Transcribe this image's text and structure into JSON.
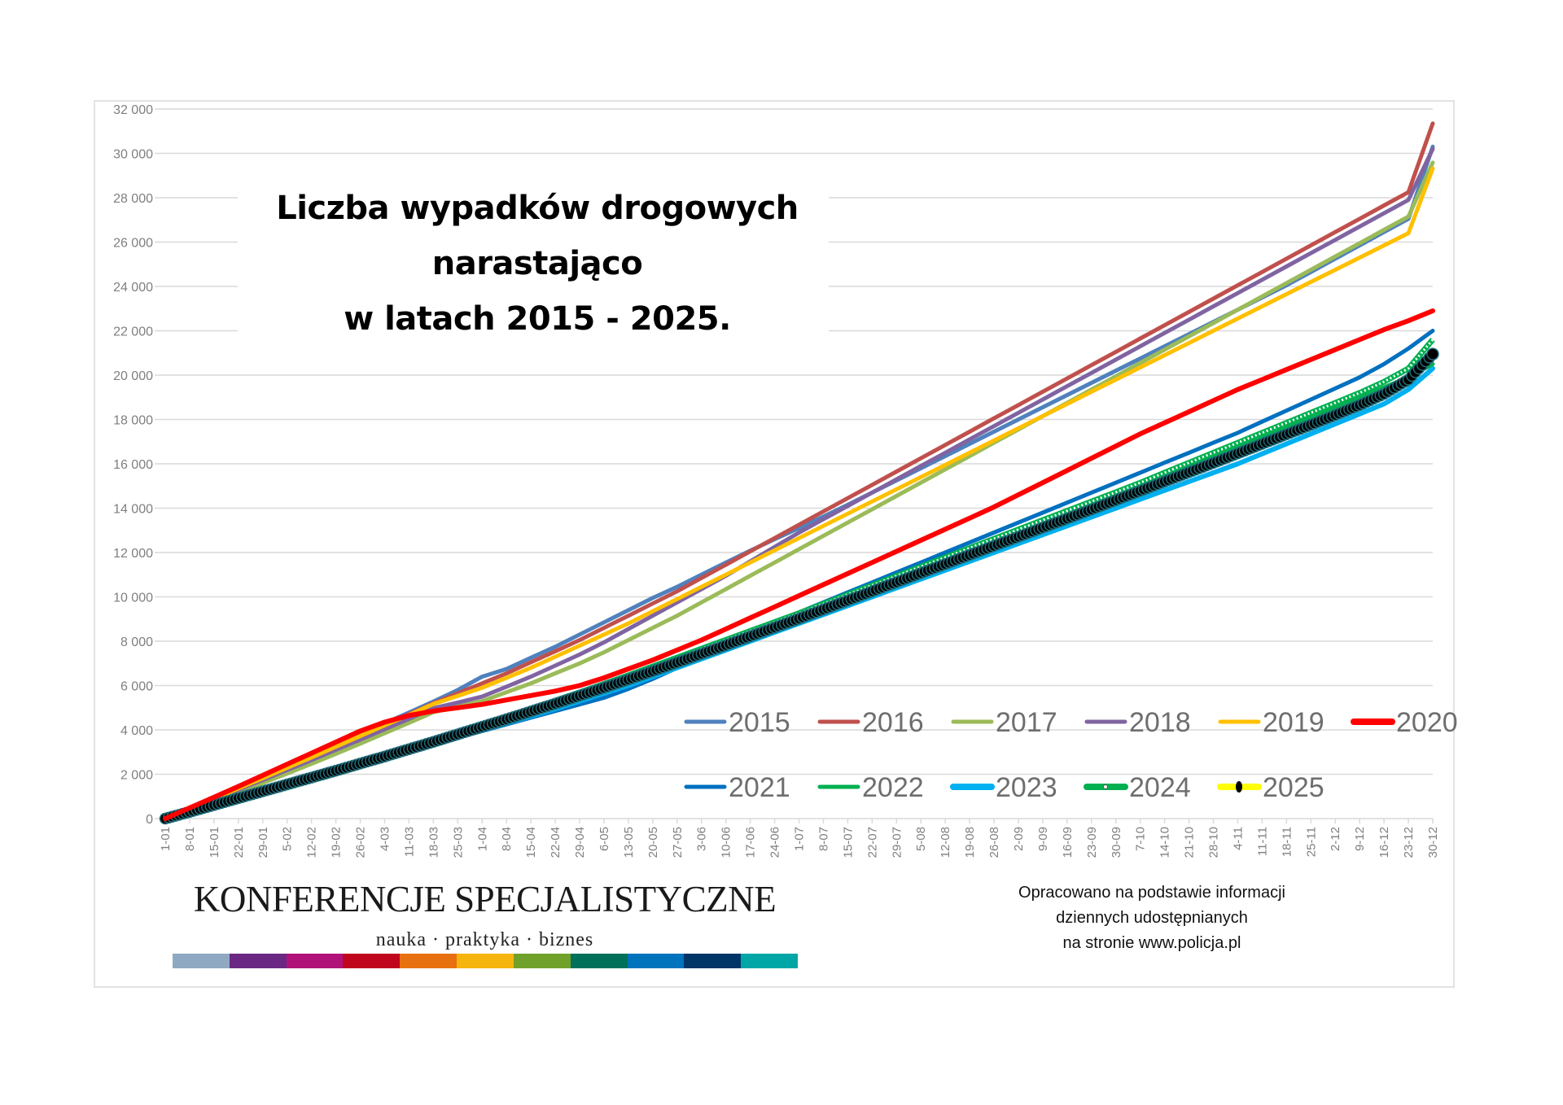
{
  "chart_data": {
    "type": "line",
    "title": "Liczba wypadków drogowych narastająco w latach 2015 - 2025.",
    "title_lines": [
      "Liczba wypadków drogowych",
      "narastająco",
      "w latach 2015 - 2025."
    ],
    "xlabel": "",
    "ylabel": "",
    "ylim": [
      0,
      32000
    ],
    "y_ticks": [
      0,
      2000,
      4000,
      6000,
      8000,
      10000,
      12000,
      14000,
      16000,
      18000,
      20000,
      22000,
      24000,
      26000,
      28000,
      30000,
      32000
    ],
    "y_tick_labels": [
      "0",
      "2 000",
      "4 000",
      "6 000",
      "8 000",
      "10 000",
      "12 000",
      "14 000",
      "16 000",
      "18 000",
      "20 000",
      "22 000",
      "24 000",
      "26 000",
      "28 000",
      "30 000",
      "32 000"
    ],
    "grid": true,
    "legend_position": "bottom-right",
    "x": [
      "1-01",
      "8-01",
      "15-01",
      "22-01",
      "29-01",
      "5-02",
      "12-02",
      "19-02",
      "26-02",
      "4-03",
      "11-03",
      "18-03",
      "25-03",
      "1-04",
      "8-04",
      "15-04",
      "22-04",
      "29-04",
      "6-05",
      "13-05",
      "20-05",
      "27-05",
      "3-06",
      "10-06",
      "17-06",
      "24-06",
      "1-07",
      "8-07",
      "15-07",
      "22-07",
      "29-07",
      "5-08",
      "12-08",
      "19-08",
      "26-08",
      "2-09",
      "9-09",
      "16-09",
      "23-09",
      "30-09",
      "7-10",
      "14-10",
      "21-10",
      "28-10",
      "4-11",
      "11-11",
      "18-11",
      "25-11",
      "2-12",
      "9-12",
      "16-12",
      "23-12",
      "30-12"
    ],
    "series": [
      {
        "name": "2015",
        "color": "#4f81bd",
        "style": "line",
        "values": [
          0,
          480,
          950,
          1420,
          1900,
          2380,
          2850,
          3330,
          3810,
          4290,
          4780,
          5280,
          5800,
          6400,
          6750,
          7250,
          7750,
          8300,
          8850,
          9400,
          9950,
          10450,
          11000,
          11550,
          12080,
          12600,
          13100,
          13620,
          14150,
          14700,
          15250,
          15800,
          16350,
          16900,
          17450,
          18000,
          18550,
          19100,
          19650,
          20200,
          20750,
          21300,
          21850,
          22400,
          22950,
          23500,
          24050,
          24650,
          25250,
          25850,
          26450,
          27050,
          30300
        ]
      },
      {
        "name": "2016",
        "color": "#c0504d",
        "style": "line",
        "values": [
          0,
          470,
          930,
          1390,
          1860,
          2330,
          2800,
          3270,
          3740,
          4220,
          4710,
          5200,
          5650,
          6100,
          6550,
          7050,
          7550,
          8050,
          8600,
          9150,
          9700,
          10250,
          10850,
          11450,
          12050,
          12650,
          13250,
          13850,
          14450,
          15050,
          15650,
          16250,
          16850,
          17450,
          18050,
          18650,
          19250,
          19850,
          20450,
          21050,
          21650,
          22250,
          22850,
          23450,
          24050,
          24650,
          25250,
          25850,
          26450,
          27050,
          27650,
          28250,
          31350
        ]
      },
      {
        "name": "2017",
        "color": "#9bbb59",
        "style": "line",
        "values": [
          0,
          400,
          800,
          1200,
          1610,
          2030,
          2470,
          2920,
          3380,
          3850,
          4320,
          4800,
          5050,
          5300,
          5700,
          6100,
          6550,
          7000,
          7500,
          8050,
          8600,
          9150,
          9750,
          10350,
          10950,
          11550,
          12150,
          12750,
          13350,
          13950,
          14550,
          15150,
          15750,
          16350,
          16950,
          17550,
          18150,
          18750,
          19350,
          19950,
          20550,
          21150,
          21750,
          22350,
          22950,
          23550,
          24150,
          24750,
          25350,
          25950,
          26550,
          27150,
          29580
        ]
      },
      {
        "name": "2018",
        "color": "#8064a2",
        "style": "line",
        "values": [
          0,
          430,
          860,
          1300,
          1740,
          2190,
          2640,
          3100,
          3560,
          4030,
          4500,
          4980,
          5230,
          5500,
          5950,
          6400,
          6900,
          7400,
          7950,
          8550,
          9150,
          9750,
          10350,
          10950,
          11600,
          12250,
          12900,
          13500,
          14100,
          14700,
          15300,
          15900,
          16500,
          17100,
          17700,
          18300,
          18900,
          19500,
          20100,
          20700,
          21300,
          21900,
          22500,
          23100,
          23700,
          24300,
          24900,
          25500,
          26100,
          26700,
          27300,
          27900,
          30200
        ]
      },
      {
        "name": "2019",
        "color": "#ffc000",
        "style": "line",
        "values": [
          0,
          450,
          900,
          1360,
          1820,
          2290,
          2760,
          3240,
          3720,
          4200,
          4680,
          5170,
          5530,
          5900,
          6350,
          6800,
          7300,
          7800,
          8300,
          8800,
          9350,
          9900,
          10450,
          11000,
          11550,
          12100,
          12650,
          13200,
          13750,
          14300,
          14850,
          15400,
          15950,
          16500,
          17050,
          17600,
          18150,
          18700,
          19250,
          19800,
          20350,
          20900,
          21450,
          22000,
          22550,
          23100,
          23650,
          24200,
          24750,
          25300,
          25850,
          26400,
          29320
        ]
      },
      {
        "name": "2020",
        "color": "#ff0000",
        "style": "line-thick",
        "values": [
          0,
          480,
          960,
          1450,
          1950,
          2450,
          2950,
          3450,
          3950,
          4350,
          4650,
          4850,
          5000,
          5150,
          5350,
          5550,
          5750,
          6000,
          6350,
          6750,
          7150,
          7600,
          8050,
          8550,
          9050,
          9550,
          10050,
          10550,
          11050,
          11550,
          12050,
          12550,
          13050,
          13550,
          14050,
          14600,
          15150,
          15700,
          16250,
          16800,
          17350,
          17850,
          18350,
          18850,
          19350,
          19800,
          20250,
          20700,
          21150,
          21600,
          22050,
          22450,
          22900
        ]
      },
      {
        "name": "2021",
        "color": "#0070c0",
        "style": "line",
        "values": [
          0,
          300,
          600,
          900,
          1200,
          1500,
          1800,
          2100,
          2400,
          2700,
          3050,
          3350,
          3650,
          3950,
          4250,
          4550,
          4850,
          5150,
          5450,
          5850,
          6300,
          6800,
          7300,
          7800,
          8300,
          8800,
          9300,
          9750,
          10200,
          10650,
          11100,
          11550,
          12000,
          12450,
          12900,
          13350,
          13800,
          14250,
          14700,
          15150,
          15600,
          16050,
          16500,
          16950,
          17400,
          17900,
          18400,
          18900,
          19400,
          19900,
          20500,
          21200,
          22000
        ]
      },
      {
        "name": "2022",
        "color": "#00b050",
        "style": "line",
        "values": [
          0,
          310,
          630,
          950,
          1280,
          1600,
          1920,
          2250,
          2570,
          2900,
          3240,
          3580,
          3920,
          4270,
          4620,
          4980,
          5350,
          5730,
          6110,
          6500,
          6900,
          7300,
          7700,
          8100,
          8500,
          8900,
          9300,
          9700,
          10100,
          10500,
          10900,
          11300,
          11700,
          12100,
          12500,
          12900,
          13300,
          13700,
          14100,
          14500,
          14950,
          15400,
          15850,
          16300,
          16750,
          17200,
          17650,
          18100,
          18550,
          19000,
          19450,
          19900,
          20500
        ]
      },
      {
        "name": "2023",
        "color": "#00b0f0",
        "style": "line-thick",
        "values": [
          0,
          300,
          600,
          900,
          1200,
          1500,
          1800,
          2100,
          2400,
          2700,
          3020,
          3340,
          3660,
          3980,
          4300,
          4620,
          4950,
          5300,
          5650,
          6000,
          6400,
          6800,
          7200,
          7600,
          8000,
          8400,
          8800,
          9200,
          9600,
          10000,
          10400,
          10800,
          11200,
          11600,
          12000,
          12400,
          12800,
          13200,
          13600,
          14000,
          14400,
          14800,
          15200,
          15600,
          16000,
          16450,
          16900,
          17350,
          17800,
          18250,
          18700,
          19350,
          20300
        ]
      },
      {
        "name": "2024",
        "color": "#00b050",
        "style": "line-marker-white",
        "values": [
          0,
          310,
          630,
          950,
          1270,
          1590,
          1910,
          2230,
          2560,
          2890,
          3220,
          3560,
          3900,
          4250,
          4600,
          4960,
          5320,
          5690,
          6070,
          6460,
          6860,
          7260,
          7660,
          8060,
          8460,
          8860,
          9260,
          9680,
          10100,
          10520,
          10940,
          11360,
          11780,
          12200,
          12620,
          13040,
          13460,
          13880,
          14300,
          14720,
          15150,
          15600,
          16050,
          16500,
          16950,
          17400,
          17850,
          18300,
          18750,
          19200,
          19700,
          20300,
          21600
        ]
      },
      {
        "name": "2025",
        "color": "#ffff00",
        "marker_color": "#000000",
        "style": "marker-black",
        "values": [
          0,
          300,
          610,
          920,
          1230,
          1540,
          1850,
          2160,
          2480,
          2800,
          3130,
          3460,
          3800,
          4140,
          4480,
          4830,
          5180,
          5540,
          5900,
          6270,
          6650,
          7040,
          7430,
          7820,
          8220,
          8620,
          9020,
          9430,
          9840,
          10250,
          10660,
          11070,
          11480,
          11890,
          12300,
          12710,
          13120,
          13530,
          13940,
          14360,
          14780,
          15200,
          15620,
          16040,
          16470,
          16900,
          17330,
          17760,
          18200,
          18650,
          19150,
          19800,
          20950
        ]
      }
    ]
  },
  "logo": {
    "name": "KONFERENCJE SPECJALISTYCZNE",
    "tagline": "nauka · praktyka · biznes",
    "bar_colors": [
      "#8ea9c1",
      "#6b2784",
      "#b0127a",
      "#c0061c",
      "#e8700f",
      "#f6b40e",
      "#70a12a",
      "#00705a",
      "#0073bd",
      "#003567",
      "#00a6a6"
    ]
  },
  "source": {
    "lines": [
      "Opracowano na podstawie informacji",
      "dziennych udostępnianych",
      "na stronie www.policja.pl"
    ]
  }
}
